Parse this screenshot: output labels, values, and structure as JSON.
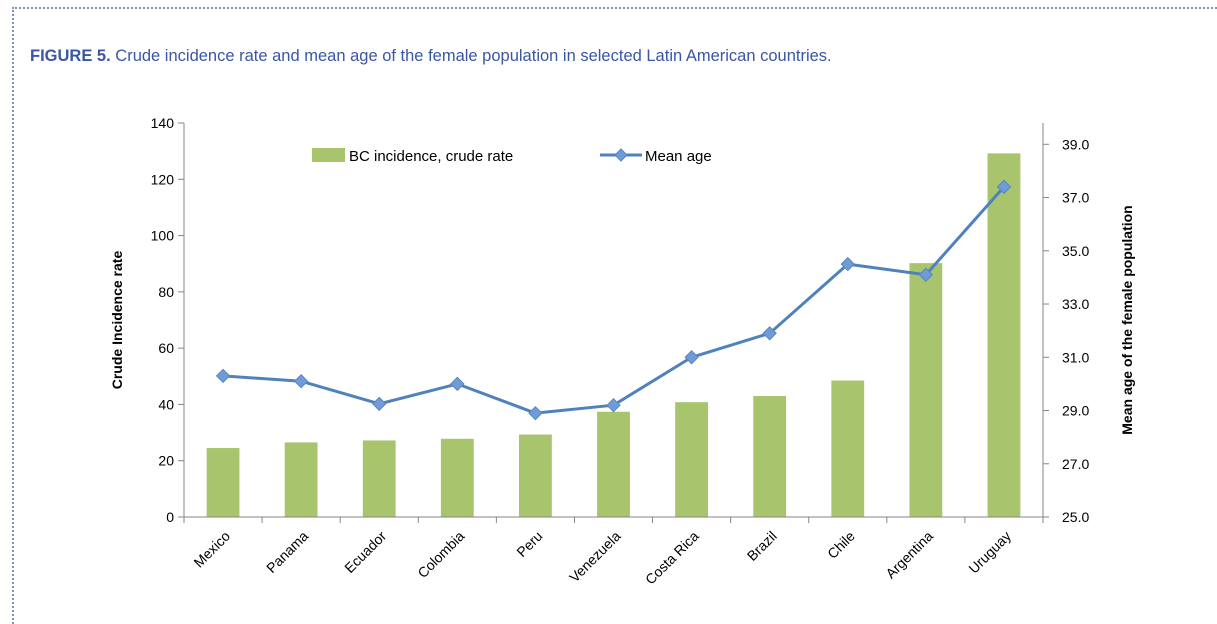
{
  "figure": {
    "label": "FIGURE 5.",
    "caption": "Crude incidence rate and mean age of the female population in selected Latin American countries."
  },
  "colors": {
    "bar": "#a8c46c",
    "line": "#4f81bd",
    "marker": "#6f9bd6",
    "caption": "#3a56a4",
    "frame": "#7f8fc0"
  },
  "chart_data": {
    "type": "bar",
    "categories": [
      "Mexico",
      "Panama",
      "Ecuador",
      "Colombia",
      "Peru",
      "Venezuela",
      "Costa Rica",
      "Brazil",
      "Chile",
      "Argentina",
      "Uruguay"
    ],
    "series": [
      {
        "name": "BC incidence, crude rate",
        "type": "bar",
        "axis": "left",
        "values": [
          24.5,
          26.5,
          27.2,
          27.8,
          29.3,
          37.4,
          40.8,
          43.0,
          48.5,
          90.2,
          129.2
        ]
      },
      {
        "name": "Mean age",
        "type": "line",
        "axis": "right",
        "marker": "diamond",
        "values": [
          30.3,
          30.1,
          29.25,
          30.0,
          28.9,
          29.2,
          31.0,
          31.9,
          34.5,
          34.1,
          37.4
        ]
      }
    ],
    "ylabel": "Crude Incidence rate",
    "ylim": [
      0,
      140
    ],
    "yticks": [
      "0",
      "20",
      "40",
      "60",
      "80",
      "100",
      "120",
      "140"
    ],
    "y2label": "Mean age of the female population",
    "y2lim": [
      25.0,
      39.8
    ],
    "y2ticks": [
      "25.0",
      "27.0",
      "29.0",
      "31.0",
      "33.0",
      "35.0",
      "37.0",
      "39.0"
    ],
    "legend_position": "top",
    "grid": false
  }
}
